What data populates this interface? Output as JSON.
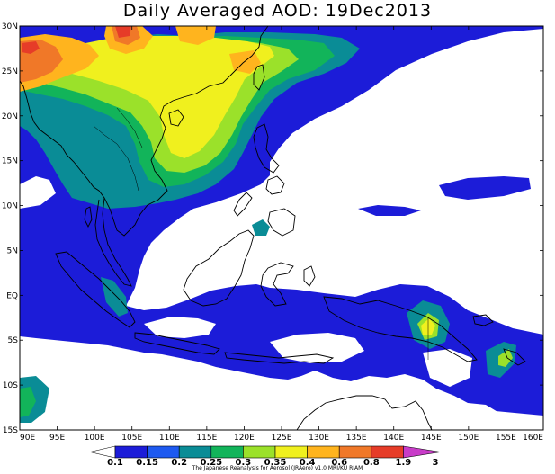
{
  "title": "Daily Averaged AOD: 19Dec2013",
  "credit": "The Japanese Reanalysis for Aerosol (JRAero) v1.0 MRI/KU RIAM",
  "map": {
    "lon_range": [
      90,
      160
    ],
    "lat_range": [
      -15,
      30
    ],
    "lon_ticks": [
      "90E",
      "95E",
      "100E",
      "105E",
      "110E",
      "115E",
      "120E",
      "125E",
      "130E",
      "135E",
      "140E",
      "145E",
      "150E",
      "155E",
      "160E"
    ],
    "lat_ticks": [
      "30N",
      "25N",
      "20N",
      "15N",
      "10N",
      "5N",
      "EQ",
      "5S",
      "10S",
      "15S"
    ]
  },
  "colorbar": {
    "levels": [
      "0.1",
      "0.15",
      "0.2",
      "0.25",
      "0.3",
      "0.35",
      "0.4",
      "0.6",
      "0.8",
      "1.9",
      "3"
    ],
    "colors": [
      "#1c1cd8",
      "#1e5af0",
      "#0a8c96",
      "#12b45a",
      "#9be12a",
      "#f0f01e",
      "#ffb41e",
      "#f07828",
      "#e63c28",
      "#c83cc8"
    ]
  },
  "palette": {
    "lt_0.1": "#ffffff",
    "0.1": "#1c1cd8",
    "0.15": "#1e5af0",
    "0.2": "#0a8c96",
    "0.25": "#12b45a",
    "0.3": "#9be12a",
    "0.35": "#f0f01e",
    "0.4": "#ffb41e",
    "0.6": "#f07828",
    "0.8": "#e63c28",
    "1.9": "#c83cc8",
    "coast": "#000000"
  }
}
